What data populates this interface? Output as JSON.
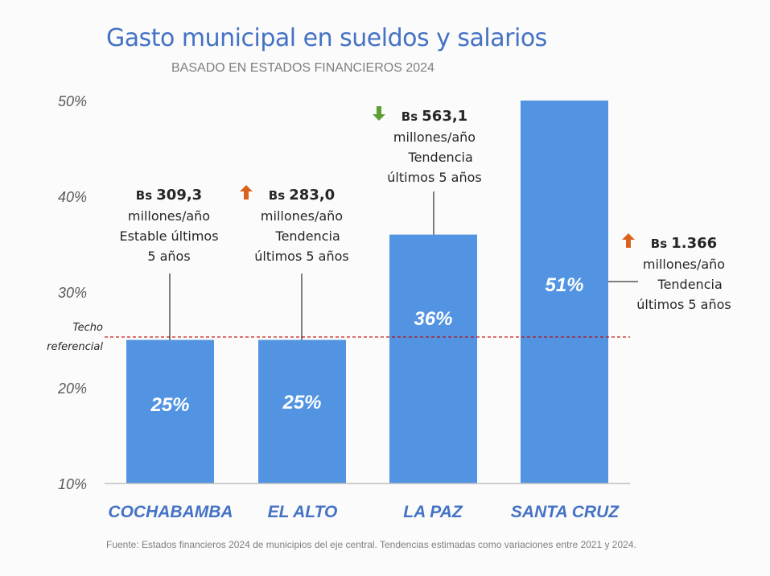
{
  "chart_data": {
    "type": "bar",
    "title": "Gasto municipal en sueldos y salarios",
    "subtitle": "BASADO EN ESTADOS FINANCIEROS 2024",
    "categories": [
      "COCHABAMBA",
      "EL ALTO",
      "LA PAZ",
      "SANTA CRUZ"
    ],
    "values": [
      25,
      25,
      36,
      51
    ],
    "value_labels": [
      "25%",
      "25%",
      "36%",
      "51%"
    ],
    "ylim": [
      10,
      50
    ],
    "yticks": [
      10,
      20,
      30,
      40,
      50
    ],
    "ytick_labels": [
      "10%",
      "20%",
      "30%",
      "40%",
      "50%"
    ],
    "xlabel": "",
    "ylabel": "",
    "grid": false,
    "reference_line": {
      "value": 25.3,
      "label_line1": "Techo",
      "label_line2": "referencial",
      "color": "#c00000"
    },
    "bar_color": "#5294e2",
    "annotations": [
      {
        "currency": "Bs",
        "amount": "309,3",
        "line2": "millones/año",
        "line3": "Estable últimos",
        "line4": "5 años",
        "trend": "none"
      },
      {
        "currency": "Bs",
        "amount": "283,0",
        "line2": "millones/año",
        "line3": "Tendencia",
        "line4": "últimos 5 años",
        "trend": "up"
      },
      {
        "currency": "Bs",
        "amount": "563,1",
        "line2": "millones/año",
        "line3": "Tendencia",
        "line4": "últimos 5 años",
        "trend": "down"
      },
      {
        "currency": "Bs",
        "amount": "1.366",
        "line2": "millones/año",
        "line3": "Tendencia",
        "line4": "últimos 5 años",
        "trend": "up"
      }
    ],
    "trend_colors": {
      "up": "#d9631c",
      "down": "#5f9e33"
    },
    "source": "Fuente: Estados financieros 2024 de municipios del eje central. Tendencias estimadas como variaciones entre 2021 y 2024."
  }
}
